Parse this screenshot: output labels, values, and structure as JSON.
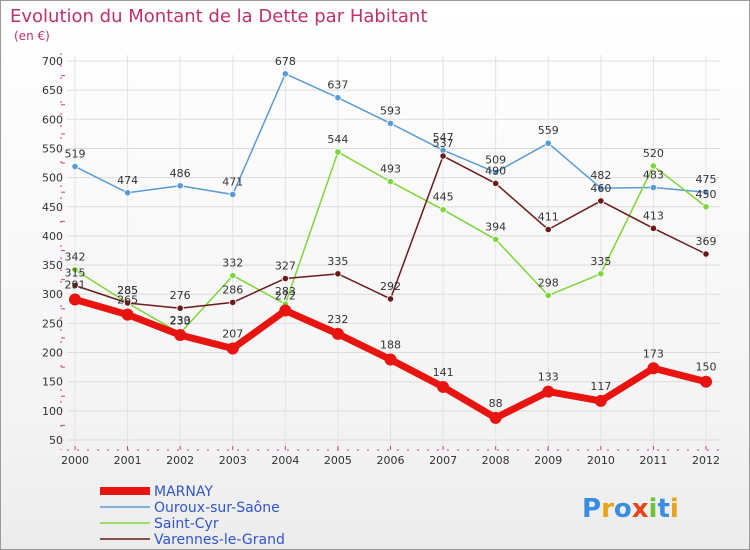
{
  "chart_data": {
    "type": "line",
    "title": "Evolution du Montant de la Dette par Habitant",
    "subtitle": "(en €)",
    "x": [
      "2000",
      "2001",
      "2002",
      "2003",
      "2004",
      "2005",
      "2006",
      "2007",
      "2008",
      "2009",
      "2010",
      "2011",
      "2012"
    ],
    "ylim": [
      50,
      700
    ],
    "yticks": [
      50,
      100,
      150,
      200,
      250,
      300,
      350,
      400,
      450,
      500,
      550,
      600,
      650,
      700
    ],
    "grid": true,
    "legend_position": "bottom-left",
    "series": [
      {
        "name": "MARNAY",
        "color": "#e8140f",
        "bold": true,
        "values": [
          291,
          265,
          230,
          207,
          272,
          232,
          188,
          141,
          88,
          133,
          117,
          173,
          150
        ]
      },
      {
        "name": "Ouroux-sur-Saône",
        "color": "#5b9bd5",
        "values": [
          519,
          474,
          486,
          471,
          678,
          637,
          593,
          547,
          509,
          559,
          482,
          483,
          475
        ]
      },
      {
        "name": "Saint-Cyr",
        "color": "#7ed63a",
        "values": [
          342,
          285,
          233,
          332,
          283,
          544,
          493,
          445,
          394,
          298,
          335,
          520,
          450
        ]
      },
      {
        "name": "Varennes-le-Grand",
        "color": "#6b1a1a",
        "values": [
          315,
          285,
          276,
          286,
          327,
          335,
          292,
          537,
          490,
          411,
          460,
          413,
          369
        ]
      }
    ]
  },
  "brand": {
    "text": "Proxiti",
    "colors": [
      "#3a8de0",
      "#e8a317",
      "#3a8de0",
      "#e84517",
      "#6cc33a",
      "#3a8de0",
      "#e8a317"
    ]
  }
}
